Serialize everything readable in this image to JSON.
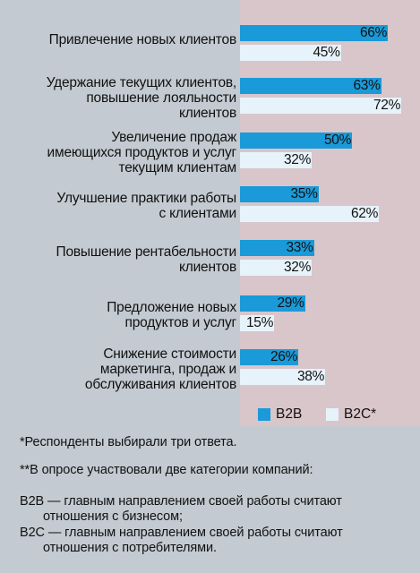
{
  "colors": {
    "b2b": "#1a9ad8",
    "b2c": "#e6f3fb",
    "left_panel": "#c3cad1",
    "right_panel": "#d8c6ca"
  },
  "chart_data": {
    "type": "bar",
    "orientation": "horizontal",
    "value_format": "percent",
    "categories": [
      [
        "Привлечение новых клиентов"
      ],
      [
        "Удержание текущих клиентов,",
        "повышение лояльности",
        "клиентов"
      ],
      [
        "Увеличение продаж",
        "имеющихся продуктов и услуг",
        "текущим клиентам"
      ],
      [
        "Улучшение практики работы",
        "с клиентами"
      ],
      [
        "Повышение рентабельности",
        "клиентов"
      ],
      [
        "Предложение новых",
        "продуктов и услуг"
      ],
      [
        "Снижение стоимости",
        "маркетинга, продаж и",
        "обслуживания клиентов"
      ]
    ],
    "series": [
      {
        "name": "B2B",
        "values": [
          66,
          63,
          50,
          35,
          33,
          29,
          26
        ],
        "labels": [
          "66%",
          "63%",
          "50%",
          "35%",
          "33%",
          "29%",
          "26%"
        ]
      },
      {
        "name": "B2C*",
        "values": [
          45,
          72,
          32,
          62,
          32,
          15,
          38
        ],
        "labels": [
          "45%",
          "72%",
          "32%",
          "62%",
          "32%",
          "15%",
          "38%"
        ]
      }
    ],
    "xlim": [
      0,
      72
    ],
    "grid": false,
    "legend_position": "bottom-right"
  },
  "notes": [
    "*Респонденты выбирали три ответа.",
    "**В опросе участвовали две категории компаний:",
    "B2B — главным направлением своей работы считают",
    "отношения с бизнесом;",
    "B2C — главным направлением своей работы считают",
    "отношения с потребителями."
  ]
}
